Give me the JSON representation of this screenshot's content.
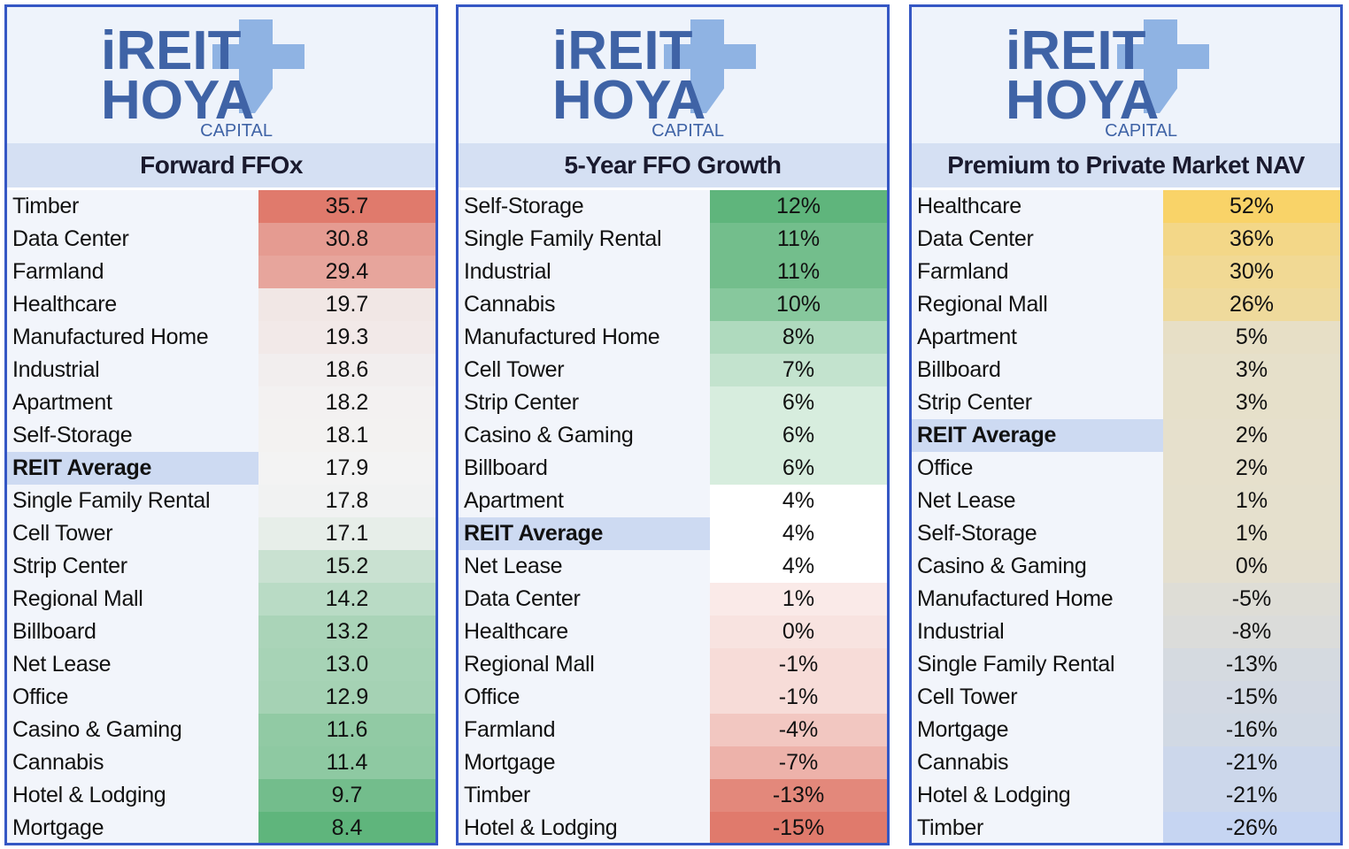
{
  "logo": {
    "brand": "iREIT",
    "brand2": "HOYA",
    "sub": "CAPITAL"
  },
  "panels": [
    {
      "title": "Forward FFOx",
      "scale": {
        "high": "#e07a6c",
        "mid": "#f3f3f3",
        "low": "#5fb57c"
      },
      "rows": [
        {
          "label": "Timber",
          "value": "35.7"
        },
        {
          "label": "Data Center",
          "value": "30.8"
        },
        {
          "label": "Farmland",
          "value": "29.4"
        },
        {
          "label": "Healthcare",
          "value": "19.7"
        },
        {
          "label": "Manufactured Home",
          "value": "19.3"
        },
        {
          "label": "Industrial",
          "value": "18.6"
        },
        {
          "label": "Apartment",
          "value": "18.2"
        },
        {
          "label": "Self-Storage",
          "value": "18.1"
        },
        {
          "label": "REIT Average",
          "value": "17.9",
          "highlight": true
        },
        {
          "label": "Single Family Rental",
          "value": "17.8"
        },
        {
          "label": "Cell Tower",
          "value": "17.1"
        },
        {
          "label": "Strip Center",
          "value": "15.2"
        },
        {
          "label": "Regional Mall",
          "value": "14.2"
        },
        {
          "label": "Billboard",
          "value": "13.2"
        },
        {
          "label": "Net Lease",
          "value": "13.0"
        },
        {
          "label": "Office",
          "value": "12.9"
        },
        {
          "label": "Casino & Gaming",
          "value": "11.6"
        },
        {
          "label": "Cannabis",
          "value": "11.4"
        },
        {
          "label": "Hotel & Lodging",
          "value": "9.7"
        },
        {
          "label": "Mortgage",
          "value": "8.4"
        }
      ]
    },
    {
      "title": "5-Year FFO Growth",
      "scale": {
        "high": "#5fb57c",
        "mid": "#ffffff",
        "low": "#e07a6c"
      },
      "rows": [
        {
          "label": "Self-Storage",
          "value": "12%"
        },
        {
          "label": "Single Family Rental",
          "value": "11%"
        },
        {
          "label": "Industrial",
          "value": "11%"
        },
        {
          "label": "Cannabis",
          "value": "10%"
        },
        {
          "label": "Manufactured Home",
          "value": "8%"
        },
        {
          "label": "Cell Tower",
          "value": "7%"
        },
        {
          "label": "Strip Center",
          "value": "6%"
        },
        {
          "label": "Casino & Gaming",
          "value": "6%"
        },
        {
          "label": "Billboard",
          "value": "6%"
        },
        {
          "label": "Apartment",
          "value": "4%"
        },
        {
          "label": "REIT Average",
          "value": "4%",
          "highlight": true
        },
        {
          "label": "Net Lease",
          "value": "4%"
        },
        {
          "label": "Data Center",
          "value": "1%"
        },
        {
          "label": "Healthcare",
          "value": "0%"
        },
        {
          "label": "Regional Mall",
          "value": "-1%"
        },
        {
          "label": "Office",
          "value": "-1%"
        },
        {
          "label": "Farmland",
          "value": "-4%"
        },
        {
          "label": "Mortgage",
          "value": "-7%"
        },
        {
          "label": "Timber",
          "value": "-13%"
        },
        {
          "label": "Hotel & Lodging",
          "value": "-15%"
        }
      ]
    },
    {
      "title": "Premium to Private Market NAV",
      "scale": {
        "high": "#f9d368",
        "mid": "#e6e0cc",
        "low": "#c6d5f2"
      },
      "rows": [
        {
          "label": "Healthcare",
          "value": "52%"
        },
        {
          "label": "Data Center",
          "value": "36%"
        },
        {
          "label": "Farmland",
          "value": "30%"
        },
        {
          "label": "Regional Mall",
          "value": "26%"
        },
        {
          "label": "Apartment",
          "value": "5%"
        },
        {
          "label": "Billboard",
          "value": "3%"
        },
        {
          "label": "Strip Center",
          "value": "3%"
        },
        {
          "label": "REIT Average",
          "value": "2%",
          "highlight": true
        },
        {
          "label": "Office",
          "value": "2%"
        },
        {
          "label": "Net Lease",
          "value": "1%"
        },
        {
          "label": "Self-Storage",
          "value": "1%"
        },
        {
          "label": "Casino & Gaming",
          "value": "0%"
        },
        {
          "label": "Manufactured Home",
          "value": "-5%"
        },
        {
          "label": "Industrial",
          "value": "-8%"
        },
        {
          "label": "Single Family Rental",
          "value": "-13%"
        },
        {
          "label": "Cell Tower",
          "value": "-15%"
        },
        {
          "label": "Mortgage",
          "value": "-16%"
        },
        {
          "label": "Cannabis",
          "value": "-21%"
        },
        {
          "label": "Hotel & Lodging",
          "value": "-21%"
        },
        {
          "label": "Timber",
          "value": "-26%"
        }
      ]
    }
  ]
}
